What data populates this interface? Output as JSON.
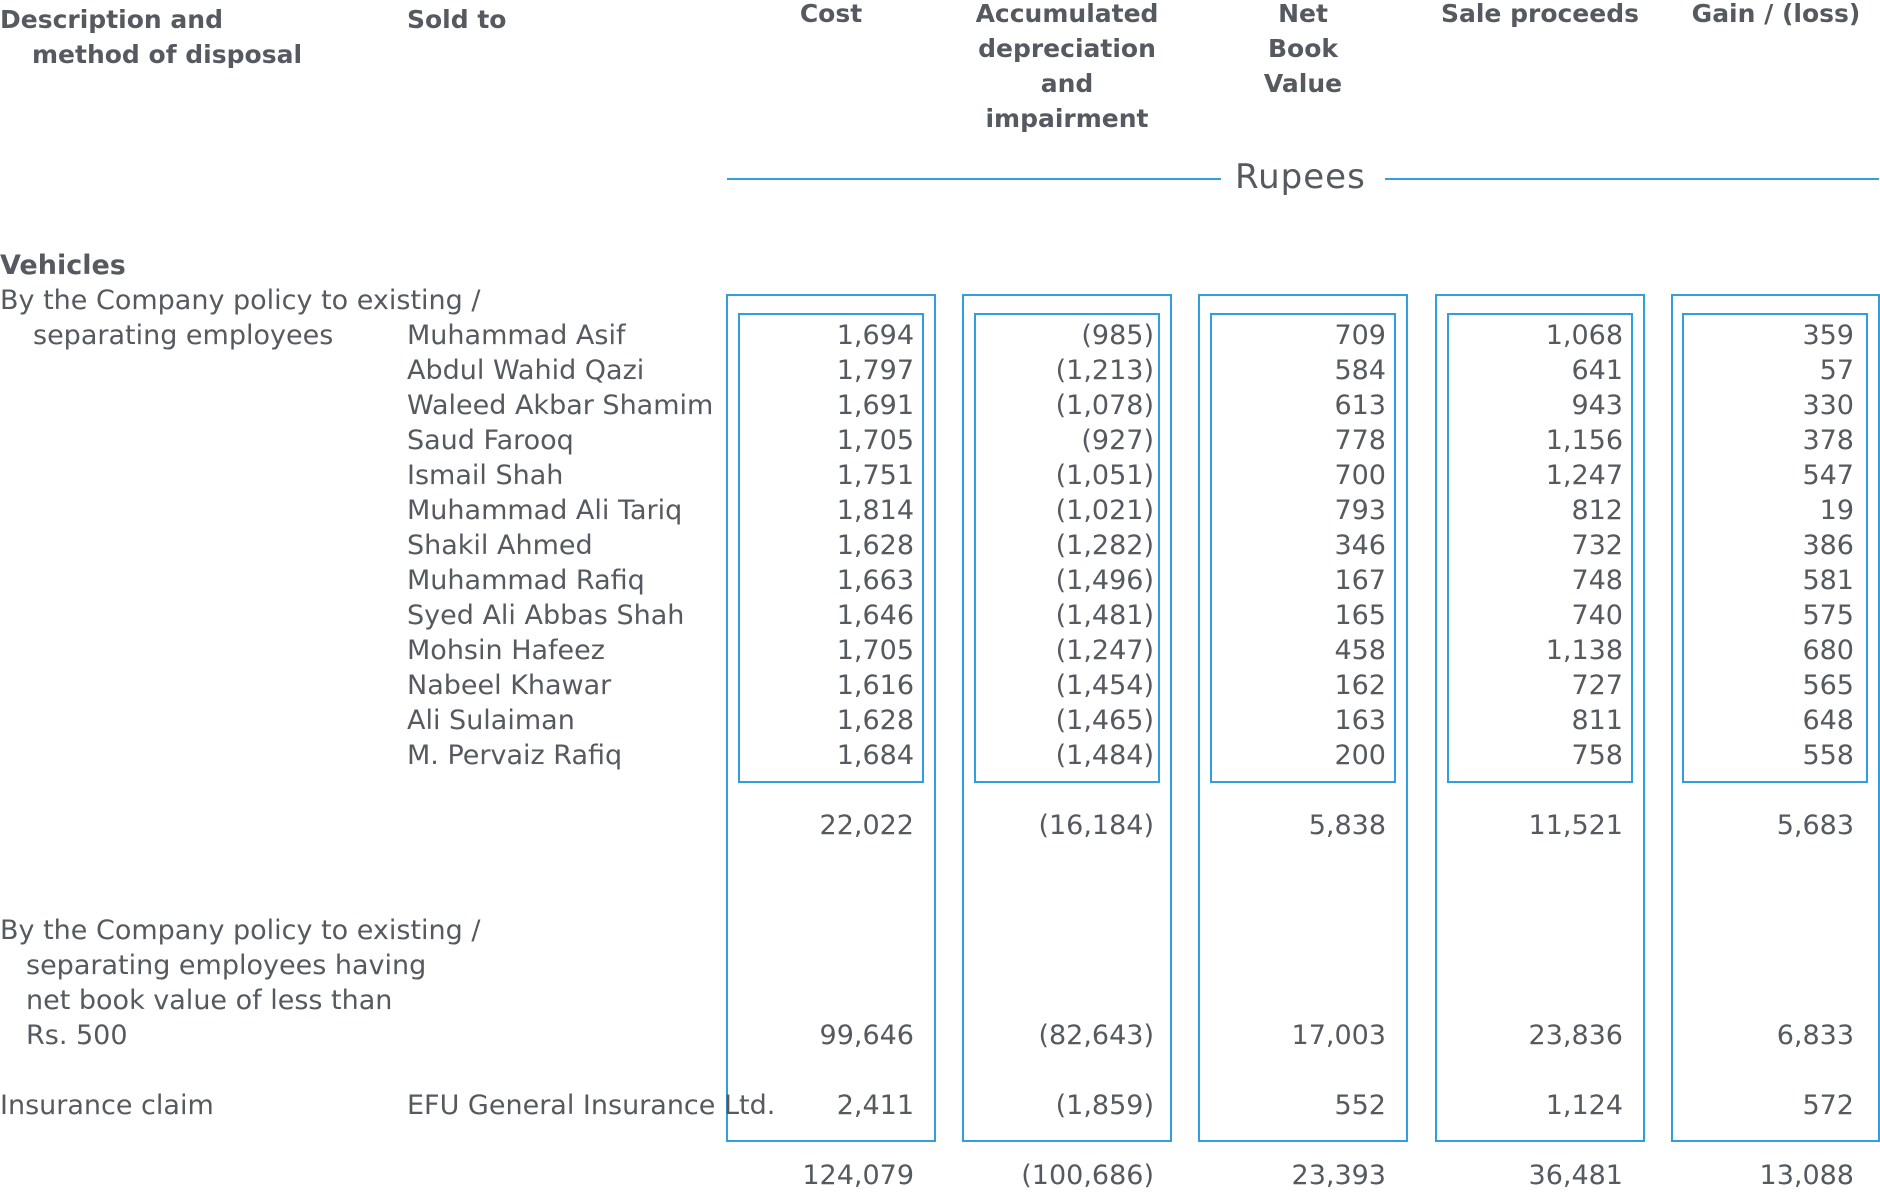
{
  "header": {
    "col1_line1": "Description and",
    "col1_line2": "method of disposal",
    "col2": "Sold to",
    "cost": "Cost",
    "accdep": [
      "Accumulated",
      "depreciation",
      "and",
      "impairment"
    ],
    "nbv": [
      "Net",
      "Book",
      "Value"
    ],
    "sale": "Sale proceeds",
    "gain": "Gain / (loss)",
    "unit": "Rupees"
  },
  "section": {
    "title": "Vehicles",
    "group1_line1": "By the Company policy to existing /",
    "group1_line2": "separating employees",
    "group2_lines": [
      "By the Company policy to existing /",
      "separating employees having",
      "net book value of less than",
      "Rs. 500"
    ],
    "insurance_label": "Insurance claim",
    "insurance_to": "EFU General Insurance Ltd."
  },
  "rows": [
    {
      "name": "Muhammad Asif",
      "cost": "1,694",
      "acc": "(985)",
      "nbv": "709",
      "sale": "1,068",
      "gain": "359"
    },
    {
      "name": "Abdul Wahid Qazi",
      "cost": "1,797",
      "acc": "(1,213)",
      "nbv": "584",
      "sale": "641",
      "gain": "57"
    },
    {
      "name": "Waleed Akbar Shamim",
      "cost": "1,691",
      "acc": "(1,078)",
      "nbv": "613",
      "sale": "943",
      "gain": "330"
    },
    {
      "name": "Saud Farooq",
      "cost": "1,705",
      "acc": "(927)",
      "nbv": "778",
      "sale": "1,156",
      "gain": "378"
    },
    {
      "name": "Ismail Shah",
      "cost": "1,751",
      "acc": "(1,051)",
      "nbv": "700",
      "sale": "1,247",
      "gain": "547"
    },
    {
      "name": "Muhammad Ali Tariq",
      "cost": "1,814",
      "acc": "(1,021)",
      "nbv": "793",
      "sale": "812",
      "gain": "19"
    },
    {
      "name": "Shakil Ahmed",
      "cost": "1,628",
      "acc": "(1,282)",
      "nbv": "346",
      "sale": "732",
      "gain": "386"
    },
    {
      "name": "Muhammad Rafiq",
      "cost": "1,663",
      "acc": "(1,496)",
      "nbv": "167",
      "sale": "748",
      "gain": "581"
    },
    {
      "name": "Syed Ali Abbas Shah",
      "cost": "1,646",
      "acc": "(1,481)",
      "nbv": "165",
      "sale": "740",
      "gain": "575"
    },
    {
      "name": "Mohsin Hafeez",
      "cost": "1,705",
      "acc": "(1,247)",
      "nbv": "458",
      "sale": "1,138",
      "gain": "680"
    },
    {
      "name": "Nabeel Khawar",
      "cost": "1,616",
      "acc": "(1,454)",
      "nbv": "162",
      "sale": "727",
      "gain": "565"
    },
    {
      "name": "Ali Sulaiman",
      "cost": "1,628",
      "acc": "(1,465)",
      "nbv": "163",
      "sale": "811",
      "gain": "648"
    },
    {
      "name": "M. Pervaiz Rafiq",
      "cost": "1,684",
      "acc": "(1,484)",
      "nbv": "200",
      "sale": "758",
      "gain": "558"
    }
  ],
  "subtotal": {
    "cost": "22,022",
    "acc": "(16,184)",
    "nbv": "5,838",
    "sale": "11,521",
    "gain": "5,683"
  },
  "group2": {
    "cost": "99,646",
    "acc": "(82,643)",
    "nbv": "17,003",
    "sale": "23,836",
    "gain": "6,833"
  },
  "insurance": {
    "cost": "2,411",
    "acc": "(1,859)",
    "nbv": "552",
    "sale": "1,124",
    "gain": "572"
  },
  "total": {
    "cost": "124,079",
    "acc": "(100,686)",
    "nbv": "23,393",
    "sale": "36,481",
    "gain": "13,088"
  },
  "colors": {
    "accent": "#2f9fe0",
    "text": "#555a60"
  }
}
